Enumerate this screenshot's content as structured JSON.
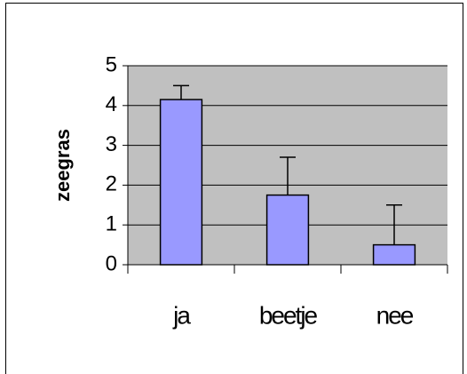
{
  "chart_data": {
    "type": "bar",
    "y_label": "zeegras",
    "categories": [
      "ja",
      "beetje",
      "nee"
    ],
    "values": [
      4.15,
      1.75,
      0.5
    ],
    "errors": [
      0.35,
      0.95,
      1.0
    ],
    "color": "#9999ff",
    "background": "#c0c0c0",
    "ylim": [
      0,
      5
    ],
    "yticks": [
      0,
      1,
      2,
      3,
      4,
      5
    ],
    "grid": true
  }
}
